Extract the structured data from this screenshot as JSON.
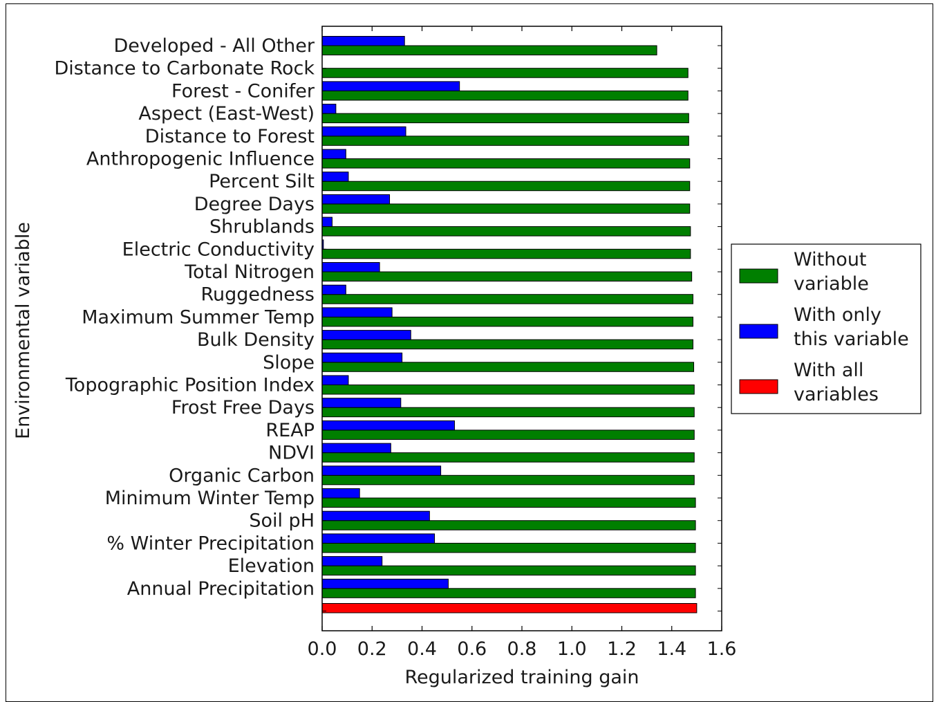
{
  "chart_data": {
    "type": "bar",
    "orientation": "horizontal",
    "xlabel": "Regularized training gain",
    "ylabel": "Environmental variable",
    "xlim": [
      0.0,
      1.6
    ],
    "xticks": [
      "0.0",
      "0.2",
      "0.4",
      "0.6",
      "0.8",
      "1.0",
      "1.2",
      "1.4",
      "1.6"
    ],
    "grid": false,
    "legend_position": "right",
    "categories": [
      "Developed - All Other",
      "Distance to Carbonate Rock",
      "Forest - Conifer",
      "Aspect (East-West)",
      "Distance to Forest",
      "Anthropogenic Influence",
      "Percent Silt",
      "Degree Days",
      "Shrublands",
      "Electric Conductivity",
      "Total Nitrogen",
      "Ruggedness",
      "Maximum Summer Temp",
      "Bulk Density",
      "Slope",
      "Topographic Position Index",
      "Frost Free Days",
      "REAP",
      "NDVI",
      "Organic Carbon",
      "Minimum Winter Temp",
      "Soil pH",
      "% Winter Precipitation",
      "Elevation",
      "Annual Precipitation"
    ],
    "series": [
      {
        "name": "Without variable",
        "color": "#007f00",
        "values": [
          1.34,
          1.465,
          1.465,
          1.468,
          1.468,
          1.472,
          1.472,
          1.472,
          1.475,
          1.475,
          1.48,
          1.485,
          1.485,
          1.485,
          1.488,
          1.49,
          1.49,
          1.49,
          1.49,
          1.49,
          1.495,
          1.495,
          1.495,
          1.495,
          1.495
        ]
      },
      {
        "name": "With only this variable",
        "color": "#0000ff",
        "values": [
          0.33,
          0.0,
          0.55,
          0.055,
          0.335,
          0.095,
          0.105,
          0.27,
          0.04,
          0.005,
          0.23,
          0.095,
          0.28,
          0.355,
          0.32,
          0.105,
          0.315,
          0.53,
          0.275,
          0.475,
          0.15,
          0.43,
          0.45,
          0.24,
          0.505
        ]
      }
    ],
    "all_variables": {
      "name": "With all variables",
      "color": "#ff0000",
      "value": 1.5
    },
    "legend": [
      {
        "label_line1": "Without",
        "label_line2": "variable",
        "color": "#007f00"
      },
      {
        "label_line1": "With only",
        "label_line2": "this variable",
        "color": "#0000ff"
      },
      {
        "label_line1": "With all",
        "label_line2": "variables",
        "color": "#ff0000"
      }
    ]
  }
}
